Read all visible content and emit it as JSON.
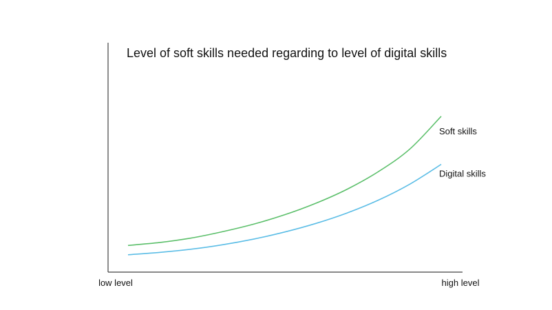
{
  "chart_data": {
    "type": "line",
    "title": "Level of soft skills needed regarding to level of digital skills",
    "xlabel": "",
    "ylabel": "",
    "x_tick_labels": [
      "low level",
      "high level"
    ],
    "xlim": [
      0,
      1
    ],
    "ylim": [
      0,
      1
    ],
    "grid": false,
    "legend": "inline-right",
    "x": [
      0.0,
      0.1,
      0.2,
      0.3,
      0.4,
      0.5,
      0.6,
      0.7,
      0.8,
      0.9,
      1.0
    ],
    "series": [
      {
        "name": "Soft skills",
        "color": "#5bbf6a",
        "values": [
          0.094,
          0.108,
          0.129,
          0.159,
          0.195,
          0.24,
          0.295,
          0.362,
          0.446,
          0.553,
          0.709
        ]
      },
      {
        "name": "Digital skills",
        "color": "#5bbde6",
        "values": [
          0.05,
          0.061,
          0.076,
          0.097,
          0.124,
          0.158,
          0.199,
          0.249,
          0.31,
          0.386,
          0.48
        ]
      }
    ]
  }
}
